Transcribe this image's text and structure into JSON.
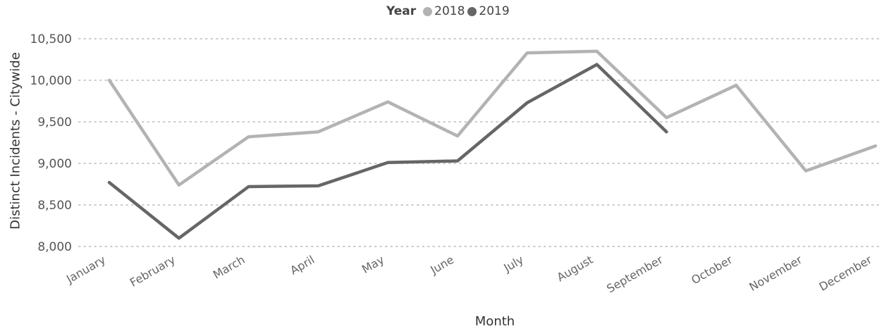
{
  "chart_data": {
    "type": "line",
    "categories": [
      "January",
      "February",
      "March",
      "April",
      "May",
      "June",
      "July",
      "August",
      "September",
      "October",
      "November",
      "December"
    ],
    "series": [
      {
        "name": "2018",
        "color": "#b3b3b3",
        "values": [
          10000,
          8740,
          9320,
          9380,
          9740,
          9330,
          10330,
          10350,
          9550,
          9940,
          8910,
          9210
        ]
      },
      {
        "name": "2019",
        "color": "#666666",
        "values": [
          8770,
          8100,
          8720,
          8730,
          9010,
          9030,
          9730,
          10190,
          9380,
          null,
          null,
          null
        ]
      }
    ],
    "legend_title": "Year",
    "legend_position": "top",
    "xlabel": "Month",
    "ylabel": "Distinct Incidents - Citywide",
    "ylim": [
      8000,
      10500
    ],
    "yticks": [
      8000,
      8500,
      9000,
      9500,
      10000,
      10500
    ],
    "ytick_labels": [
      "8,000",
      "8,500",
      "9,000",
      "9,500",
      "10,000",
      "10,500"
    ],
    "grid": "horizontal-dotted"
  }
}
